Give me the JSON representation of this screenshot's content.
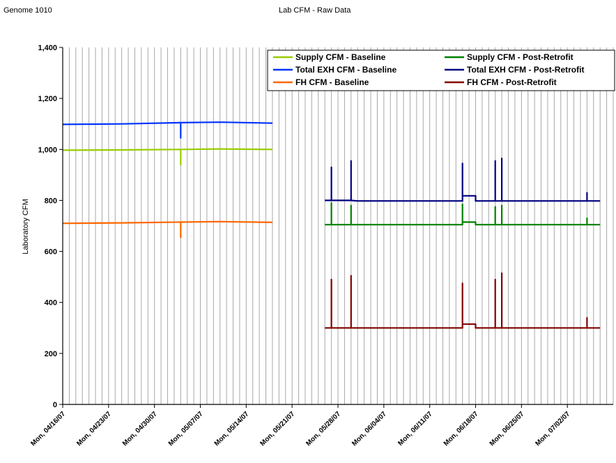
{
  "header": {
    "left": "Genome 1010",
    "center": "Lab CFM - Raw Data"
  },
  "chart_data": {
    "type": "line",
    "title": "Lab CFM - Raw Data",
    "xlabel": "",
    "ylabel": "Laboratory CFM",
    "ylim": [
      0,
      1400
    ],
    "yticks": [
      0,
      200,
      400,
      600,
      800,
      1000,
      1200,
      1400
    ],
    "ytick_labels": [
      "0",
      "200",
      "400",
      "600",
      "800",
      "1,000",
      "1,200",
      "1,400"
    ],
    "xlim": [
      "2007-04-16",
      "2007-07-09"
    ],
    "xtick_labels": [
      "Mon, 04/16/07",
      "Mon, 04/23/07",
      "Mon, 04/30/07",
      "Mon, 05/07/07",
      "Mon, 05/14/07",
      "Mon, 05/21/07",
      "Mon, 05/28/07",
      "Mon, 06/04/07",
      "Mon, 06/11/07",
      "Mon, 06/18/07",
      "Mon, 06/25/07",
      "Mon, 07/02/07"
    ],
    "grid": "vertical",
    "legend_position": "top-right",
    "series": [
      {
        "name": "Supply CFM - Baseline",
        "color": "#99cc00",
        "x": [
          "2007-04-16",
          "2007-04-25",
          "2007-05-04",
          "2007-05-04",
          "2007-05-04",
          "2007-05-10",
          "2007-05-18"
        ],
        "y": [
          997,
          998,
          1000,
          940,
          1000,
          1002,
          1000
        ]
      },
      {
        "name": "Supply CFM - Post-Retrofit",
        "color": "#008000",
        "x": [
          "2007-05-26",
          "2007-05-27",
          "2007-05-27",
          "2007-05-27",
          "2007-05-29",
          "2007-05-30",
          "2007-05-30",
          "2007-05-30",
          "2007-05-31",
          "2007-06-08",
          "2007-06-16",
          "2007-06-16",
          "2007-06-16",
          "2007-06-16",
          "2007-06-18",
          "2007-06-18",
          "2007-06-21",
          "2007-06-21",
          "2007-06-21",
          "2007-06-22",
          "2007-06-22",
          "2007-06-22",
          "2007-07-05",
          "2007-07-05",
          "2007-07-05",
          "2007-07-07"
        ],
        "y": [
          705,
          705,
          790,
          705,
          705,
          705,
          780,
          705,
          705,
          705,
          705,
          785,
          715,
          715,
          715,
          705,
          705,
          775,
          705,
          705,
          780,
          705,
          705,
          730,
          705,
          705
        ]
      },
      {
        "name": "Total EXH CFM - Baseline",
        "color": "#0033ff",
        "x": [
          "2007-04-16",
          "2007-04-25",
          "2007-05-04",
          "2007-05-04",
          "2007-05-04",
          "2007-05-10",
          "2007-05-18"
        ],
        "y": [
          1098,
          1100,
          1105,
          1045,
          1105,
          1107,
          1103
        ]
      },
      {
        "name": "Total EXH CFM - Post-Retrofit",
        "color": "#000080",
        "x": [
          "2007-05-26",
          "2007-05-27",
          "2007-05-27",
          "2007-05-27",
          "2007-05-29",
          "2007-05-30",
          "2007-05-30",
          "2007-05-30",
          "2007-05-30",
          "2007-05-30",
          "2007-05-31",
          "2007-06-08",
          "2007-06-16",
          "2007-06-16",
          "2007-06-16",
          "2007-06-16",
          "2007-06-18",
          "2007-06-18",
          "2007-06-21",
          "2007-06-21",
          "2007-06-21",
          "2007-06-22",
          "2007-06-22",
          "2007-06-22",
          "2007-07-05",
          "2007-07-05",
          "2007-07-05",
          "2007-07-07"
        ],
        "y": [
          800,
          800,
          930,
          800,
          800,
          800,
          955,
          800,
          880,
          800,
          798,
          798,
          798,
          945,
          818,
          818,
          818,
          798,
          798,
          955,
          798,
          798,
          965,
          798,
          798,
          830,
          798,
          798
        ]
      },
      {
        "name": "FH CFM - Baseline",
        "color": "#ff6600",
        "x": [
          "2007-04-16",
          "2007-04-25",
          "2007-05-04",
          "2007-05-04",
          "2007-05-04",
          "2007-05-10",
          "2007-05-18"
        ],
        "y": [
          710,
          712,
          715,
          655,
          715,
          717,
          714
        ]
      },
      {
        "name": "FH CFM - Post-Retrofit",
        "color": "#800000",
        "x": [
          "2007-05-26",
          "2007-05-27",
          "2007-05-27",
          "2007-05-27",
          "2007-05-29",
          "2007-05-30",
          "2007-05-30",
          "2007-05-30",
          "2007-05-30",
          "2007-05-30",
          "2007-05-31",
          "2007-06-08",
          "2007-06-16",
          "2007-06-16",
          "2007-06-16",
          "2007-06-16",
          "2007-06-18",
          "2007-06-18",
          "2007-06-21",
          "2007-06-21",
          "2007-06-21",
          "2007-06-22",
          "2007-06-22",
          "2007-06-22",
          "2007-07-05",
          "2007-07-05",
          "2007-07-05",
          "2007-07-07"
        ],
        "y": [
          300,
          300,
          490,
          300,
          300,
          300,
          505,
          300,
          420,
          300,
          300,
          300,
          300,
          475,
          315,
          315,
          315,
          300,
          300,
          490,
          300,
          300,
          515,
          300,
          300,
          340,
          300,
          300
        ]
      }
    ]
  }
}
